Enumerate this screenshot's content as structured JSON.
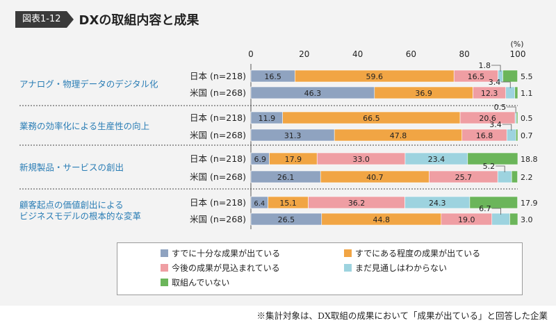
{
  "figure_label": "図表1-12",
  "title": "DXの取組内容と成果",
  "chart_data": {
    "type": "bar",
    "orientation": "horizontal-stacked",
    "unit_label": "(%)",
    "xlim": [
      0,
      100
    ],
    "x_ticks": [
      "0",
      "20",
      "40",
      "60",
      "80",
      "100"
    ],
    "groups": [
      {
        "label": [
          "アナログ・物理データのデジタル化"
        ],
        "rows": [
          {
            "label": "日本 (n=218)",
            "values": [
              16.5,
              59.6,
              16.5,
              1.8,
              5.5
            ]
          },
          {
            "label": "米国 (n=268)",
            "values": [
              46.3,
              36.9,
              12.3,
              3.4,
              1.1
            ]
          }
        ]
      },
      {
        "label": [
          "業務の効率化による生産性の向上"
        ],
        "rows": [
          {
            "label": "日本 (n=218)",
            "values": [
              11.9,
              66.5,
              20.6,
              0.5,
              0.5
            ]
          },
          {
            "label": "米国 (n=268)",
            "values": [
              31.3,
              47.8,
              16.8,
              3.4,
              0.7
            ]
          }
        ]
      },
      {
        "label": [
          "新規製品・サービスの創出"
        ],
        "rows": [
          {
            "label": "日本 (n=218)",
            "values": [
              6.9,
              17.9,
              33.0,
              23.4,
              18.8
            ]
          },
          {
            "label": "米国 (n=268)",
            "values": [
              26.1,
              40.7,
              25.7,
              5.2,
              2.2
            ]
          }
        ]
      },
      {
        "label": [
          "顧客起点の価値創出による",
          "ビジネスモデルの根本的な変革"
        ],
        "rows": [
          {
            "label": "日本 (n=218)",
            "values": [
              6.4,
              15.1,
              36.2,
              24.3,
              17.9
            ]
          },
          {
            "label": "米国 (n=268)",
            "values": [
              26.5,
              44.8,
              19.0,
              6.7,
              3.0
            ]
          }
        ]
      }
    ],
    "series": [
      {
        "name": "すでに十分な成果が出ている",
        "color": "#8fa3c0"
      },
      {
        "name": "すでにある程度の成果が出ている",
        "color": "#f1a544"
      },
      {
        "name": "今後の成果が見込まれている",
        "color": "#ef9ea3"
      },
      {
        "name": "まだ見通しはわからない",
        "color": "#9dd3df"
      },
      {
        "name": "取組んでいない",
        "color": "#6bb55a"
      }
    ]
  },
  "footnote": "※集計対象は、DX取組の成果において「成果が出ている」と回答した企業"
}
